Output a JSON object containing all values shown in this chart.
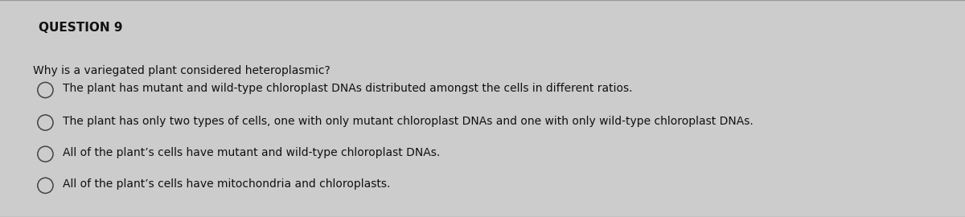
{
  "title": "QUESTION 9",
  "question": "Why is a variegated plant considered heteroplasmic?",
  "options": [
    "The plant has mutant and wild-type chloroplast DNAs distributed amongst the cells in different ratios.",
    "The plant has only two types of cells, one with only mutant chloroplast DNAs and one with only wild-type chloroplast DNAs.",
    "All of the plant’s cells have mutant and wild-type chloroplast DNAs.",
    "All of the plant’s cells have mitochondria and chloroplasts."
  ],
  "background_color": "#cccccc",
  "box_color": "#e2e2e2",
  "title_fontsize": 11,
  "question_fontsize": 10,
  "option_fontsize": 10,
  "text_color": "#111111",
  "border_color": "#999999",
  "circle_color": "#444444"
}
